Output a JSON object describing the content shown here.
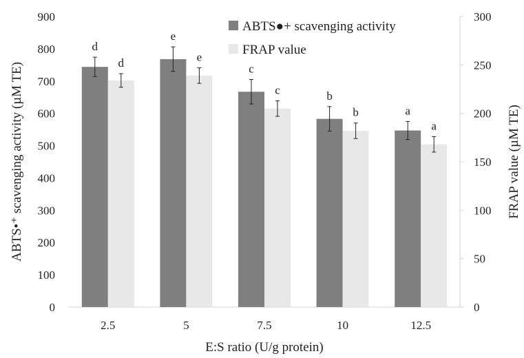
{
  "chart_data": {
    "type": "bar",
    "title": "",
    "xlabel": "E:S ratio (U/g protein)",
    "ylabel": "ABTS•⁺ scavenging activity (µM TE)",
    "y2label": "FRAP value (µM TE)",
    "categories": [
      "2.5",
      "5",
      "7.5",
      "10",
      "12.5"
    ],
    "ylim": [
      0,
      900
    ],
    "y2lim": [
      0,
      300
    ],
    "yticks": [
      "0",
      "100",
      "200",
      "300",
      "400",
      "500",
      "600",
      "700",
      "800",
      "900"
    ],
    "y2ticks": [
      "0",
      "50",
      "100",
      "150",
      "200",
      "250",
      "300"
    ],
    "legend_position": "top-right",
    "grid": false,
    "series": [
      {
        "name": "ABTS●+ scavenging activity",
        "axis": "left",
        "color": "#7f7f7f",
        "values": [
          744,
          768,
          667,
          583,
          547
        ],
        "errors": [
          30,
          38,
          38,
          38,
          28
        ],
        "letters": [
          "d",
          "e",
          "c",
          "b",
          "a"
        ]
      },
      {
        "name": "FRAP value",
        "axis": "right",
        "color": "#e8e8e8",
        "values": [
          234,
          239,
          205,
          182,
          168
        ],
        "errors": [
          7,
          8,
          8,
          8,
          8
        ],
        "letters": [
          "d",
          "e",
          "c",
          "b",
          "a"
        ]
      }
    ]
  }
}
